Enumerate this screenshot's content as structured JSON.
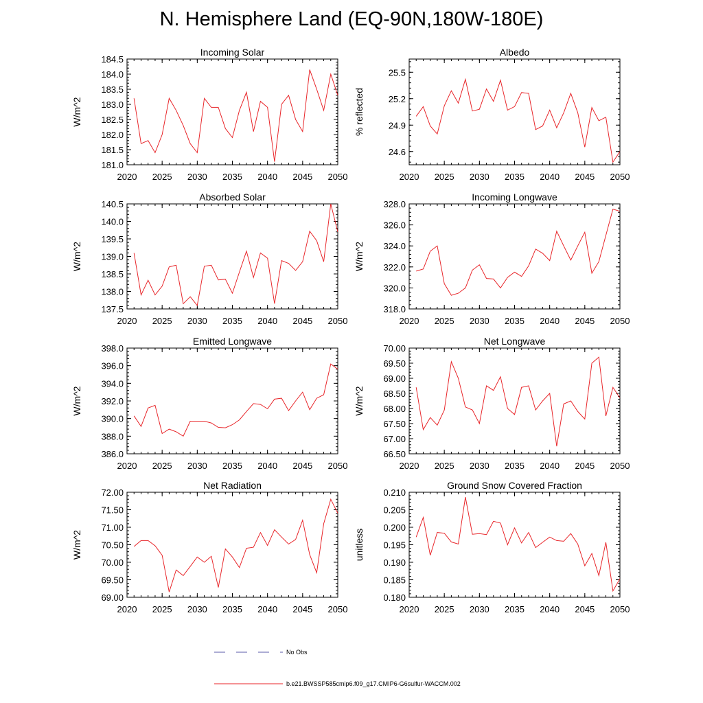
{
  "title": "N. Hemisphere Land (EQ-90N,180W-180E)",
  "line_color": "#e8262a",
  "legend": {
    "obs_label": "No Obs",
    "obs_color": "#5a5aa8",
    "model_label": "b.e21.BWSSP585cmip6.f09_g17.CMIP6-G6sulfur-WACCM.002",
    "model_color": "#e8262a"
  },
  "chart_data": [
    {
      "type": "line",
      "title": "Incoming Solar",
      "ylabel": "W/m^2",
      "xlim": [
        2020,
        2050
      ],
      "ylim": [
        181.0,
        184.5
      ],
      "yticks": [
        181.0,
        181.5,
        182.0,
        182.5,
        183.0,
        183.5,
        184.0,
        184.5
      ],
      "ytick_labels": [
        "181.0",
        "181.5",
        "182.0",
        "182.5",
        "183.0",
        "183.5",
        "184.0",
        "184.5"
      ],
      "xticks": [
        2020,
        2025,
        2030,
        2035,
        2040,
        2045,
        2050
      ],
      "x": [
        2021,
        2022,
        2023,
        2024,
        2025,
        2026,
        2027,
        2028,
        2029,
        2030,
        2031,
        2032,
        2033,
        2034,
        2035,
        2036,
        2037,
        2038,
        2039,
        2040,
        2041,
        2042,
        2043,
        2044,
        2045,
        2046,
        2047,
        2048,
        2049,
        2050
      ],
      "series": [
        {
          "values": [
            183.2,
            181.7,
            181.8,
            181.4,
            182.0,
            183.2,
            182.8,
            182.3,
            181.7,
            181.4,
            183.2,
            182.9,
            182.9,
            182.2,
            181.9,
            182.8,
            183.4,
            182.1,
            183.1,
            182.9,
            181.1,
            183.0,
            183.3,
            182.5,
            182.1,
            184.15,
            183.5,
            182.8,
            184.0,
            183.3
          ]
        }
      ]
    },
    {
      "type": "line",
      "title": "Albedo",
      "ylabel": "% reflected",
      "xlim": [
        2020,
        2050
      ],
      "ylim": [
        24.45,
        25.65
      ],
      "yticks": [
        24.6,
        24.9,
        25.2,
        25.5
      ],
      "ytick_labels": [
        "24.6",
        "24.9",
        "25.2",
        "25.5"
      ],
      "xticks": [
        2020,
        2025,
        2030,
        2035,
        2040,
        2045,
        2050
      ],
      "x": [
        2021,
        2022,
        2023,
        2024,
        2025,
        2026,
        2027,
        2028,
        2029,
        2030,
        2031,
        2032,
        2033,
        2034,
        2035,
        2036,
        2037,
        2038,
        2039,
        2040,
        2041,
        2042,
        2043,
        2044,
        2045,
        2046,
        2047,
        2048,
        2049,
        2050
      ],
      "series": [
        {
          "values": [
            25.0,
            25.11,
            24.89,
            24.8,
            25.12,
            25.29,
            25.15,
            25.42,
            25.06,
            25.08,
            25.31,
            25.17,
            25.41,
            25.07,
            25.11,
            25.27,
            25.26,
            24.85,
            24.89,
            25.07,
            24.87,
            25.04,
            25.26,
            25.04,
            24.65,
            25.1,
            24.95,
            24.99,
            24.48,
            24.6
          ]
        }
      ]
    },
    {
      "type": "line",
      "title": "Absorbed Solar",
      "ylabel": "W/m^2",
      "xlim": [
        2020,
        2050
      ],
      "ylim": [
        137.5,
        140.5
      ],
      "yticks": [
        137.5,
        138.0,
        138.5,
        139.0,
        139.5,
        140.0,
        140.5
      ],
      "ytick_labels": [
        "137.5",
        "138.0",
        "138.5",
        "139.0",
        "139.5",
        "140.0",
        "140.5"
      ],
      "xticks": [
        2020,
        2025,
        2030,
        2035,
        2040,
        2045,
        2050
      ],
      "x": [
        2021,
        2022,
        2023,
        2024,
        2025,
        2026,
        2027,
        2028,
        2029,
        2030,
        2031,
        2032,
        2033,
        2034,
        2035,
        2036,
        2037,
        2038,
        2039,
        2040,
        2041,
        2042,
        2043,
        2044,
        2045,
        2046,
        2047,
        2048,
        2049,
        2050
      ],
      "series": [
        {
          "values": [
            139.1,
            137.9,
            138.32,
            137.9,
            138.15,
            138.7,
            138.75,
            137.65,
            137.85,
            137.6,
            138.72,
            138.75,
            138.33,
            138.35,
            137.95,
            138.55,
            139.15,
            138.4,
            139.1,
            138.95,
            137.65,
            138.88,
            138.8,
            138.6,
            138.85,
            139.72,
            139.45,
            138.85,
            140.5,
            139.7
          ]
        }
      ]
    },
    {
      "type": "line",
      "title": "Incoming Longwave",
      "ylabel": "W/m^2",
      "xlim": [
        2020,
        2050
      ],
      "ylim": [
        318.0,
        328.0
      ],
      "yticks": [
        318.0,
        320.0,
        322.0,
        324.0,
        326.0,
        328.0
      ],
      "ytick_labels": [
        "318.0",
        "320.0",
        "322.0",
        "324.0",
        "326.0",
        "328.0"
      ],
      "xticks": [
        2020,
        2025,
        2030,
        2035,
        2040,
        2045,
        2050
      ],
      "x": [
        2021,
        2022,
        2023,
        2024,
        2025,
        2026,
        2027,
        2028,
        2029,
        2030,
        2031,
        2032,
        2033,
        2034,
        2035,
        2036,
        2037,
        2038,
        2039,
        2040,
        2041,
        2042,
        2043,
        2044,
        2045,
        2046,
        2047,
        2048,
        2049,
        2050
      ],
      "series": [
        {
          "values": [
            321.6,
            321.8,
            323.5,
            324.0,
            320.4,
            319.3,
            319.5,
            320.0,
            321.7,
            322.2,
            320.9,
            320.85,
            320.0,
            321.0,
            321.5,
            321.1,
            322.1,
            323.7,
            323.3,
            322.6,
            325.4,
            324.0,
            322.65,
            324.0,
            325.3,
            321.4,
            322.5,
            325.0,
            327.5,
            327.3
          ]
        }
      ]
    },
    {
      "type": "line",
      "title": "Emitted Longwave",
      "ylabel": "W/m^2",
      "xlim": [
        2020,
        2050
      ],
      "ylim": [
        386.0,
        398.0
      ],
      "yticks": [
        386.0,
        388.0,
        390.0,
        392.0,
        394.0,
        396.0,
        398.0
      ],
      "ytick_labels": [
        "386.0",
        "388.0",
        "390.0",
        "392.0",
        "394.0",
        "396.0",
        "398.0"
      ],
      "xticks": [
        2020,
        2025,
        2030,
        2035,
        2040,
        2045,
        2050
      ],
      "x": [
        2021,
        2022,
        2023,
        2024,
        2025,
        2026,
        2027,
        2028,
        2029,
        2030,
        2031,
        2032,
        2033,
        2034,
        2035,
        2036,
        2037,
        2038,
        2039,
        2040,
        2041,
        2042,
        2043,
        2044,
        2045,
        2046,
        2047,
        2048,
        2049,
        2050
      ],
      "series": [
        {
          "values": [
            390.3,
            389.1,
            391.2,
            391.5,
            388.3,
            388.8,
            388.5,
            388.0,
            389.7,
            389.7,
            389.7,
            389.5,
            389.0,
            388.95,
            389.3,
            389.85,
            390.8,
            391.7,
            391.6,
            391.1,
            392.2,
            392.3,
            390.9,
            392.0,
            393.0,
            391.0,
            392.3,
            392.7,
            396.2,
            395.6
          ]
        }
      ]
    },
    {
      "type": "line",
      "title": "Net Longwave",
      "ylabel": "W/m^2",
      "xlim": [
        2020,
        2050
      ],
      "ylim": [
        66.5,
        70.0
      ],
      "yticks": [
        66.5,
        67.0,
        67.5,
        68.0,
        68.5,
        69.0,
        69.5,
        70.0
      ],
      "ytick_labels": [
        "66.50",
        "67.00",
        "67.50",
        "68.00",
        "68.50",
        "69.00",
        "69.50",
        "70.00"
      ],
      "xticks": [
        2020,
        2025,
        2030,
        2035,
        2040,
        2045,
        2050
      ],
      "x": [
        2021,
        2022,
        2023,
        2024,
        2025,
        2026,
        2027,
        2028,
        2029,
        2030,
        2031,
        2032,
        2033,
        2034,
        2035,
        2036,
        2037,
        2038,
        2039,
        2040,
        2041,
        2042,
        2043,
        2044,
        2045,
        2046,
        2047,
        2048,
        2049,
        2050
      ],
      "series": [
        {
          "values": [
            68.7,
            67.3,
            67.7,
            67.45,
            67.95,
            69.55,
            69.0,
            68.05,
            67.95,
            67.5,
            68.75,
            68.6,
            69.05,
            68.0,
            67.8,
            68.7,
            68.75,
            67.95,
            68.25,
            68.5,
            66.75,
            68.15,
            68.25,
            67.9,
            67.65,
            69.5,
            69.7,
            67.75,
            68.7,
            68.35
          ]
        }
      ]
    },
    {
      "type": "line",
      "title": "Net Radiation",
      "ylabel": "W/m^2",
      "xlim": [
        2020,
        2050
      ],
      "ylim": [
        69.0,
        72.0
      ],
      "yticks": [
        69.0,
        69.5,
        70.0,
        70.5,
        71.0,
        71.5,
        72.0
      ],
      "ytick_labels": [
        "69.00",
        "69.50",
        "70.00",
        "70.50",
        "71.00",
        "71.50",
        "72.00"
      ],
      "xticks": [
        2020,
        2025,
        2030,
        2035,
        2040,
        2045,
        2050
      ],
      "x": [
        2021,
        2022,
        2023,
        2024,
        2025,
        2026,
        2027,
        2028,
        2029,
        2030,
        2031,
        2032,
        2033,
        2034,
        2035,
        2036,
        2037,
        2038,
        2039,
        2040,
        2041,
        2042,
        2043,
        2044,
        2045,
        2046,
        2047,
        2048,
        2049,
        2050
      ],
      "series": [
        {
          "values": [
            70.45,
            70.62,
            70.62,
            70.47,
            70.2,
            69.15,
            69.78,
            69.62,
            69.88,
            70.15,
            70.0,
            70.17,
            69.28,
            70.38,
            70.15,
            69.85,
            70.4,
            70.43,
            70.85,
            70.48,
            70.93,
            70.72,
            70.52,
            70.65,
            71.2,
            70.22,
            69.7,
            71.1,
            71.8,
            71.4
          ]
        }
      ]
    },
    {
      "type": "line",
      "title": "Ground Snow Covered Fraction",
      "ylabel": "unitless",
      "xlim": [
        2020,
        2050
      ],
      "ylim": [
        0.18,
        0.21
      ],
      "yticks": [
        0.18,
        0.185,
        0.19,
        0.195,
        0.2,
        0.205,
        0.21
      ],
      "ytick_labels": [
        "0.180",
        "0.185",
        "0.190",
        "0.195",
        "0.200",
        "0.205",
        "0.210"
      ],
      "xticks": [
        2020,
        2025,
        2030,
        2035,
        2040,
        2045,
        2050
      ],
      "x": [
        2021,
        2022,
        2023,
        2024,
        2025,
        2026,
        2027,
        2028,
        2029,
        2030,
        2031,
        2032,
        2033,
        2034,
        2035,
        2036,
        2037,
        2038,
        2039,
        2040,
        2041,
        2042,
        2043,
        2044,
        2045,
        2046,
        2047,
        2048,
        2049,
        2050
      ],
      "series": [
        {
          "values": [
            0.1972,
            0.2028,
            0.192,
            0.1985,
            0.1983,
            0.1958,
            0.1952,
            0.2086,
            0.198,
            0.1982,
            0.1979,
            0.2017,
            0.2012,
            0.195,
            0.1998,
            0.1955,
            0.1985,
            0.1942,
            0.1957,
            0.1972,
            0.1962,
            0.196,
            0.1982,
            0.1952,
            0.189,
            0.1925,
            0.1862,
            0.1957,
            0.1818,
            0.1853
          ]
        }
      ]
    }
  ]
}
